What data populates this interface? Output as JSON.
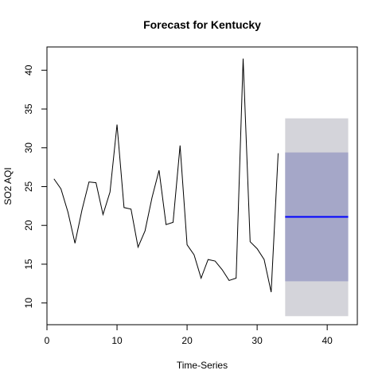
{
  "chart_data": {
    "type": "line",
    "title": "Forecast for Kentucky",
    "xlabel": "Time-Series",
    "ylabel": "SO2 AQI",
    "xlim": [
      0,
      44.3
    ],
    "ylim": [
      7.2,
      43.0
    ],
    "x_ticks": [
      0,
      10,
      20,
      30,
      40
    ],
    "y_ticks": [
      10,
      15,
      20,
      25,
      30,
      35,
      40
    ],
    "grid": false,
    "series": [
      {
        "type": "line",
        "color": "#000000",
        "x": [
          1,
          2,
          3,
          4,
          5,
          6,
          7,
          8,
          9,
          10,
          11,
          12,
          13,
          14,
          15,
          16,
          17,
          18,
          19,
          20,
          21,
          22,
          23,
          24,
          25,
          26,
          27,
          28,
          29,
          30,
          31,
          32,
          33
        ],
        "y": [
          26.0,
          24.7,
          21.7,
          17.7,
          22.0,
          25.6,
          25.5,
          21.4,
          24.3,
          33.0,
          22.3,
          22.1,
          17.2,
          19.3,
          23.6,
          27.1,
          20.1,
          20.4,
          30.3,
          17.5,
          16.2,
          13.2,
          15.6,
          15.4,
          14.3,
          12.9,
          13.2,
          41.5,
          17.9,
          17.0,
          15.6,
          11.4,
          29.3
        ]
      }
    ],
    "forecast": {
      "x_start": 34,
      "x_end": 43,
      "mean": 21.1,
      "mean_color": "#0000FF",
      "interval_80": [
        12.8,
        29.4
      ],
      "interval_80_color": "#A5A7C8",
      "interval_95": [
        8.3,
        33.8
      ],
      "interval_95_color": "#D4D4DA"
    }
  }
}
